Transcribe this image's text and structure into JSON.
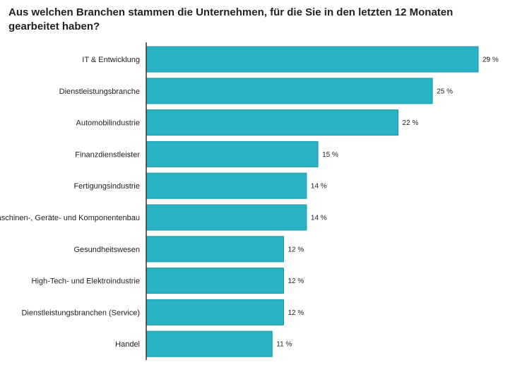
{
  "chart_data": {
    "type": "bar",
    "orientation": "horizontal",
    "title": "Aus welchen Branchen stammen die Unternehmen, für die Sie in den letzten 12 Monaten gearbeitet haben?",
    "categories": [
      "IT & Entwicklung",
      "Dienstleistungsbranche",
      "Automobilindustrie",
      "Finanzdienstleister",
      "Fertigungsindustrie",
      "Maschinen-, Geräte- und Komponentenbau",
      "Gesundheitswesen",
      "High-Tech- und Elektroindustrie",
      "Dienstleistungsbranchen (Service)",
      "Handel"
    ],
    "values": [
      29,
      25,
      22,
      15,
      14,
      14,
      12,
      12,
      12,
      11
    ],
    "value_labels": [
      "29 %",
      "25 %",
      "22 %",
      "15 %",
      "14 %",
      "14 %",
      "12 %",
      "12 %",
      "12 %",
      "11 %"
    ],
    "unit": "%",
    "xlim": [
      0,
      29
    ],
    "xlabel": "",
    "ylabel": "",
    "grid": false,
    "legend": false,
    "bar_color": "#29b2c3",
    "bar_stroke_color": "#1d98a8"
  }
}
